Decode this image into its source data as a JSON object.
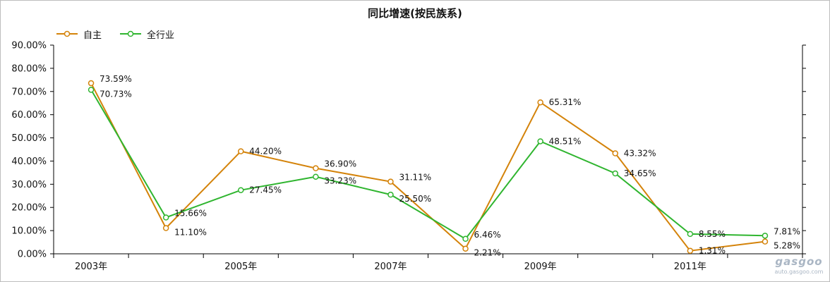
{
  "chart_data": {
    "type": "line",
    "title": "同比增速(按民族系)",
    "x": [
      "2003",
      "2004",
      "2005",
      "2006",
      "2007",
      "2008",
      "2009",
      "2010",
      "2011",
      "2012"
    ],
    "x_tick_labels": [
      "2003年",
      "2005年",
      "2007年",
      "2009年",
      "2011年"
    ],
    "y_tick_labels": [
      "0.00%",
      "10.00%",
      "20.00%",
      "30.00%",
      "40.00%",
      "50.00%",
      "60.00%",
      "70.00%",
      "80.00%",
      "90.00%"
    ],
    "ylim": [
      0,
      90
    ],
    "grid": false,
    "legend_position": "top-left",
    "series": [
      {
        "name": "自主",
        "color": "#d4830a",
        "values": [
          73.59,
          11.1,
          44.2,
          36.9,
          31.11,
          2.21,
          65.31,
          43.32,
          1.31,
          5.28
        ],
        "labels": [
          "73.59%",
          "11.10%",
          "44.20%",
          "36.90%",
          "31.11%",
          "2.21%",
          "65.31%",
          "43.32%",
          "1.31%",
          "5.28%"
        ]
      },
      {
        "name": "全行业",
        "color": "#2fb52f",
        "values": [
          70.73,
          15.66,
          27.45,
          33.23,
          25.5,
          6.46,
          48.51,
          34.65,
          8.55,
          7.81
        ],
        "labels": [
          "70.73%",
          "15.66%",
          "27.45%",
          "33.23%",
          "25.50%",
          "6.46%",
          "48.51%",
          "34.65%",
          "8.55%",
          "7.81%"
        ]
      }
    ]
  },
  "watermark": {
    "logo": "gasgoo",
    "url": "auto.gasgoo.com"
  }
}
